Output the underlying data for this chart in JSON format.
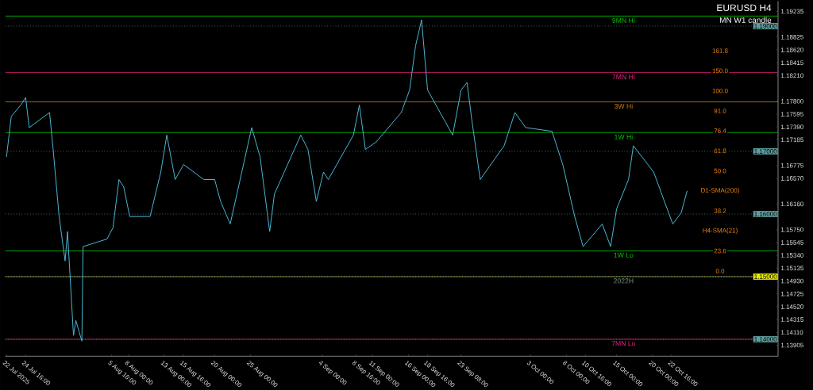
{
  "chart_data": {
    "type": "line",
    "title": "EURUSD H4",
    "subtitle": "MN W1 candle",
    "x": [
      "2025-07-22T00:00",
      "2025-07-22T16:00",
      "2025-07-24T00:00",
      "2025-07-24T16:00",
      "2025-07-25T04:00",
      "2025-07-28T00:00",
      "2025-07-28T12:00",
      "2025-07-29T08:00",
      "2025-07-30T04:00",
      "2025-07-30T12:00",
      "2025-07-31T08:00",
      "2025-07-31T16:00",
      "2025-08-01T12:00",
      "2025-08-01T16:00",
      "2025-08-05T00:00",
      "2025-08-05T20:00",
      "2025-08-06T16:00",
      "2025-08-07T08:00",
      "2025-08-08T04:00",
      "2025-08-11T00:00",
      "2025-08-12T12:00",
      "2025-08-13T08:00",
      "2025-08-14T12:00",
      "2025-08-15T16:00",
      "2025-08-18T12:00",
      "2025-08-20T00:00",
      "2025-08-20T20:00",
      "2025-08-22T04:00",
      "2025-08-25T04:00",
      "2025-08-26T08:00",
      "2025-08-27T16:00",
      "2025-08-28T08:00",
      "2025-09-01T00:00",
      "2025-09-02T00:00",
      "2025-09-03T04:00",
      "2025-09-04T04:00",
      "2025-09-04T20:00",
      "2025-09-08T08:00",
      "2025-09-09T04:00",
      "2025-09-10T00:00",
      "2025-09-11T12:00",
      "2025-09-15T00:00",
      "2025-09-16T04:00",
      "2025-09-17T00:00",
      "2025-09-17T20:00",
      "2025-09-18T16:00",
      "2025-09-19T20:00",
      "2025-09-22T04:00",
      "2025-09-23T08:00",
      "2025-09-24T04:00",
      "2025-09-24T20:00",
      "2025-09-26T00:00",
      "2025-09-29T08:00",
      "2025-09-30T20:00",
      "2025-10-02T08:00",
      "2025-10-06T00:00",
      "2025-10-07T12:00",
      "2025-10-09T04:00",
      "2025-10-10T08:00",
      "2025-10-13T00:00",
      "2025-10-14T04:00",
      "2025-10-15T00:00",
      "2025-10-16T16:00",
      "2025-10-17T08:00",
      "2025-10-20T04:00",
      "2025-10-21T16:00",
      "2025-10-22T20:00",
      "2025-10-24T00:00",
      "2025-10-24T20:00"
    ],
    "series": [
      {
        "color": "#4fc3e0",
        "values": [
          1.1691,
          1.1756,
          1.1774,
          1.1786,
          1.1738,
          1.1762,
          1.1703,
          1.1596,
          1.1525,
          1.1572,
          1.1406,
          1.143,
          1.1397,
          1.1548,
          1.156,
          1.1578,
          1.1655,
          1.1643,
          1.1596,
          1.1596,
          1.1667,
          1.1726,
          1.1655,
          1.1679,
          1.1655,
          1.1655,
          1.162,
          1.1584,
          1.1738,
          1.1691,
          1.1572,
          1.1632,
          1.1726,
          1.1703,
          1.162,
          1.1667,
          1.1655,
          1.1726,
          1.1774,
          1.1703,
          1.1715,
          1.1762,
          1.1798,
          1.1869,
          1.191,
          1.1798,
          1.1774,
          1.1726,
          1.1798,
          1.181,
          1.175,
          1.1655,
          1.1709,
          1.1762,
          1.1738,
          1.1732,
          1.1679,
          1.1596,
          1.1548,
          1.1584,
          1.1548,
          1.1608,
          1.1655,
          1.1709,
          1.1667,
          1.162,
          1.1584,
          1.1602,
          1.1637
        ]
      }
    ],
    "xlim": [
      "2025-07-21T20:00",
      "2025-11-06T12:00"
    ],
    "ylim": [
      1.1373,
      1.194
    ],
    "xticks": [
      {
        "value": "2025-07-22T00:00",
        "label": "22 Jul 2025"
      },
      {
        "value": "2025-07-24T16:00",
        "label": "24 Jul 16:00"
      },
      {
        "value": "2025-08-05T16:00",
        "label": "5 Aug 16:00"
      },
      {
        "value": "2025-08-08T00:00",
        "label": "8 Aug 00:00"
      },
      {
        "value": "2025-08-13T00:00",
        "label": "13 Aug 00:00"
      },
      {
        "value": "2025-08-15T16:00",
        "label": "15 Aug 16:00"
      },
      {
        "value": "2025-08-20T00:00",
        "label": "20 Aug 00:00"
      },
      {
        "value": "2025-08-25T00:00",
        "label": "25 Aug 00:00"
      },
      {
        "value": "2025-09-04T00:00",
        "label": "4 Sep 00:00"
      },
      {
        "value": "2025-09-08T16:00",
        "label": "8 Sep 16:00"
      },
      {
        "value": "2025-09-11T00:00",
        "label": "11 Sep 00:00"
      },
      {
        "value": "2025-09-16T00:00",
        "label": "16 Sep 00:00"
      },
      {
        "value": "2025-09-18T16:00",
        "label": "18 Sep 16:00"
      },
      {
        "value": "2025-09-23T08:00",
        "label": "23 Sep 08:00"
      },
      {
        "value": "2025-10-03T00:00",
        "label": "3 Oct 00:00"
      },
      {
        "value": "2025-10-08T00:00",
        "label": "8 Oct 00:00"
      },
      {
        "value": "2025-10-10T16:00",
        "label": "10 Oct 16:00"
      },
      {
        "value": "2025-10-15T00:00",
        "label": "15 Oct 00:00"
      },
      {
        "value": "2025-10-20T00:00",
        "label": "20 Oct 00:00"
      },
      {
        "value": "2025-10-22T16:00",
        "label": "22 Oct 16:00"
      }
    ],
    "yticks": [
      {
        "value": 1.19235,
        "label": "1.19235"
      },
      {
        "value": 1.18825,
        "label": "1.18825"
      },
      {
        "value": 1.1862,
        "label": "1.18620"
      },
      {
        "value": 1.18415,
        "label": "1.18415"
      },
      {
        "value": 1.1821,
        "label": "1.18210"
      },
      {
        "value": 1.178,
        "label": "1.17800"
      },
      {
        "value": 1.17595,
        "label": "1.17595"
      },
      {
        "value": 1.1739,
        "label": "1.17390"
      },
      {
        "value": 1.17185,
        "label": "1.17185"
      },
      {
        "value": 1.16775,
        "label": "1.16775"
      },
      {
        "value": 1.1657,
        "label": "1.16570"
      },
      {
        "value": 1.1616,
        "label": "1.16160"
      },
      {
        "value": 1.1575,
        "label": "1.15750"
      },
      {
        "value": 1.15545,
        "label": "1.15545"
      },
      {
        "value": 1.1534,
        "label": "1.15340"
      },
      {
        "value": 1.15135,
        "label": "1.15135"
      },
      {
        "value": 1.1493,
        "label": "1.14930"
      },
      {
        "value": 1.14725,
        "label": "1.14725"
      },
      {
        "value": 1.1452,
        "label": "1.14520"
      },
      {
        "value": 1.14315,
        "label": "1.14315"
      },
      {
        "value": 1.1411,
        "label": "1.14110"
      },
      {
        "value": 1.13905,
        "label": "1.13905"
      }
    ],
    "ref_lines": [
      {
        "axis": "y",
        "value": 1.1916,
        "label": "9MN Hi",
        "color": "#00cc00",
        "line_style": "solid"
      },
      {
        "axis": "y",
        "value": 1.1826,
        "label": "7MN Hi",
        "color": "#e0207a",
        "line_style": "solid"
      },
      {
        "axis": "y",
        "value": 1.1779,
        "label": "3W Hi",
        "color": "#c8801e",
        "line_style": "solid"
      },
      {
        "axis": "y",
        "value": 1.173,
        "label": "1W Hi",
        "color": "#00cc00",
        "line_style": "solid"
      },
      {
        "axis": "y",
        "value": 1.1541,
        "label": "1W Lo",
        "color": "#00cc00",
        "line_style": "solid"
      },
      {
        "axis": "y",
        "value": 1.15,
        "label": "2022H",
        "color": "#7a9a7a",
        "line_style": "solid"
      },
      {
        "axis": "y",
        "value": 1.14,
        "label": "7MN Lo",
        "color": "#e0207a",
        "line_style": "solid"
      },
      {
        "axis": "y",
        "value": 1.19,
        "label": "1.19000",
        "color": "#5f9ea0",
        "line_style": "dotted"
      },
      {
        "axis": "y",
        "value": 1.17,
        "label": "1.17000",
        "color": "#5f9ea0",
        "line_style": "dotted"
      },
      {
        "axis": "y",
        "value": 1.16,
        "label": "1.16000",
        "color": "#5f9ea0",
        "line_style": "dotted"
      },
      {
        "axis": "y",
        "value": 1.15,
        "label": "1.15000",
        "color": "#e8e800",
        "line_style": "dotted"
      },
      {
        "axis": "y",
        "value": 1.14,
        "label": "1.14000",
        "color": "#5f9ea0",
        "line_style": "dotted"
      }
    ],
    "annotations": [
      "161.8",
      "150.0",
      "100.0",
      "91.0",
      "76.4",
      "61.8",
      "50.0",
      "D1-SMA(200)",
      "38.2",
      "H4-SMA(21)",
      "23.6",
      "0.0"
    ]
  }
}
